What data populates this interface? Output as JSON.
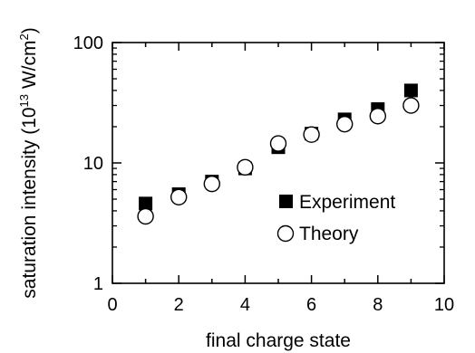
{
  "chart_data": {
    "type": "scatter",
    "title": "",
    "xlabel": "final charge state",
    "ylabel_main": "saturation intensity (10",
    "ylabel_exp": "13",
    "ylabel_unit": " W/cm",
    "ylabel_unit_exp": "2",
    "ylabel_close": ")",
    "xlim": [
      0,
      10
    ],
    "ylim": [
      1,
      100
    ],
    "yscale": "log",
    "grid": false,
    "legend_position": "lower-right",
    "x_ticks": [
      0,
      2,
      4,
      6,
      8,
      10
    ],
    "x_tick_labels": [
      "0",
      "2",
      "4",
      "6",
      "8",
      "10"
    ],
    "y_ticks": [
      1,
      10,
      100
    ],
    "y_tick_labels": [
      "1",
      "10",
      "100"
    ],
    "series": [
      {
        "name": "Experiment",
        "marker": "filled-square",
        "color": "#000000",
        "x": [
          1,
          2,
          3,
          4,
          5,
          6,
          7,
          8,
          9
        ],
        "y": [
          4.6,
          5.5,
          7.0,
          9.0,
          13.5,
          17.5,
          23.0,
          28.0,
          40.0
        ]
      },
      {
        "name": "Theory",
        "marker": "open-circle",
        "color": "#000000",
        "x": [
          1,
          2,
          3,
          4,
          5,
          6,
          7,
          8,
          9
        ],
        "y": [
          3.6,
          5.2,
          6.7,
          9.2,
          14.5,
          17.2,
          21.0,
          24.5,
          30.0
        ]
      }
    ]
  }
}
